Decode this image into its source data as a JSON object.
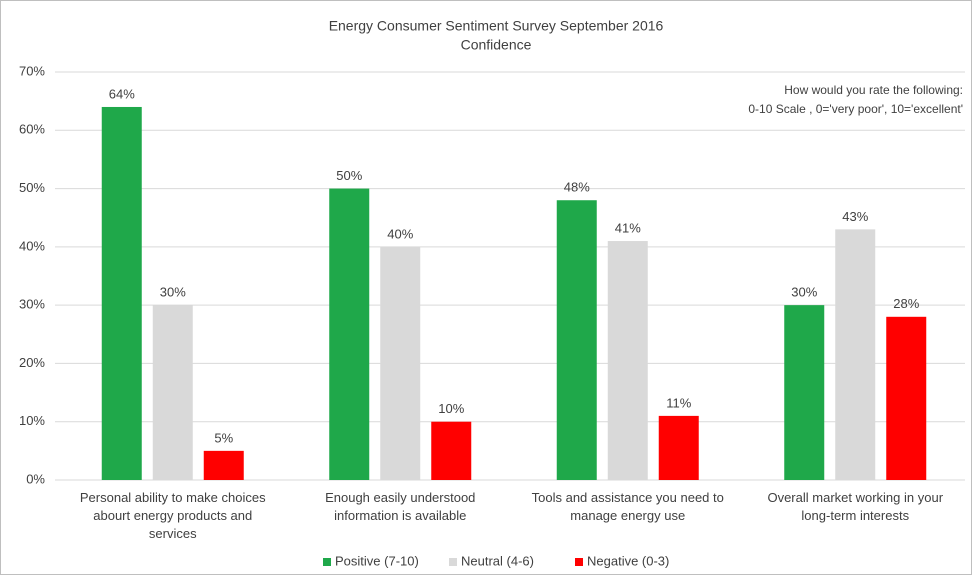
{
  "chart_data": {
    "type": "bar",
    "title": "Energy Consumer Sentiment Survey September 2016",
    "subtitle": "Confidence",
    "annotations": [
      "How would you rate the following:",
      "0-10 Scale , 0='very poor', 10='excellent'"
    ],
    "categories": [
      "Personal ability to make choices abourt energy products and services",
      "Enough easily understood information is available",
      "Tools and assistance you need to manage energy use",
      "Overall market working in your long-term interests"
    ],
    "series": [
      {
        "name": "Positive (7-10)",
        "color": "#1fa84a",
        "values": [
          64,
          50,
          48,
          30
        ],
        "value_labels": [
          "64%",
          "50%",
          "48%",
          "30%"
        ]
      },
      {
        "name": "Neutral (4-6)",
        "color": "#d9d9d9",
        "values": [
          30,
          40,
          41,
          43
        ],
        "value_labels": [
          "30%",
          "40%",
          "41%",
          "43%"
        ]
      },
      {
        "name": "Negative (0-3)",
        "color": "#ff0000",
        "values": [
          5,
          10,
          11,
          28
        ],
        "value_labels": [
          "5%",
          "10%",
          "11%",
          "28%"
        ]
      }
    ],
    "ylim": [
      0,
      70
    ],
    "yticks": [
      {
        "value": 0,
        "label": "0%"
      },
      {
        "value": 10,
        "label": "10%"
      },
      {
        "value": 20,
        "label": "20%"
      },
      {
        "value": 30,
        "label": "30%"
      },
      {
        "value": 40,
        "label": "40%"
      },
      {
        "value": 50,
        "label": "50%"
      },
      {
        "value": 60,
        "label": "60%"
      },
      {
        "value": 70,
        "label": "70%"
      }
    ],
    "grid": true,
    "legend": "bottom"
  }
}
